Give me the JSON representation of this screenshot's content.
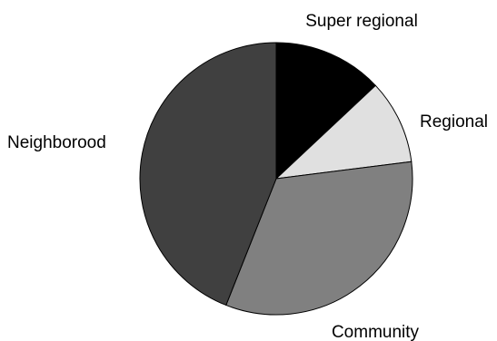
{
  "chart_data": {
    "type": "pie",
    "title": "",
    "start_angle_deg": 0,
    "direction": "clockwise",
    "legend": "none",
    "slices": [
      {
        "label": "Super regional",
        "value": 13,
        "color": "#000000"
      },
      {
        "label": "Regional",
        "value": 10,
        "color": "#e0e0e0"
      },
      {
        "label": "Community",
        "value": 33,
        "color": "#808080"
      },
      {
        "label": "Neighborood",
        "value": 44,
        "color": "#404040"
      }
    ]
  }
}
